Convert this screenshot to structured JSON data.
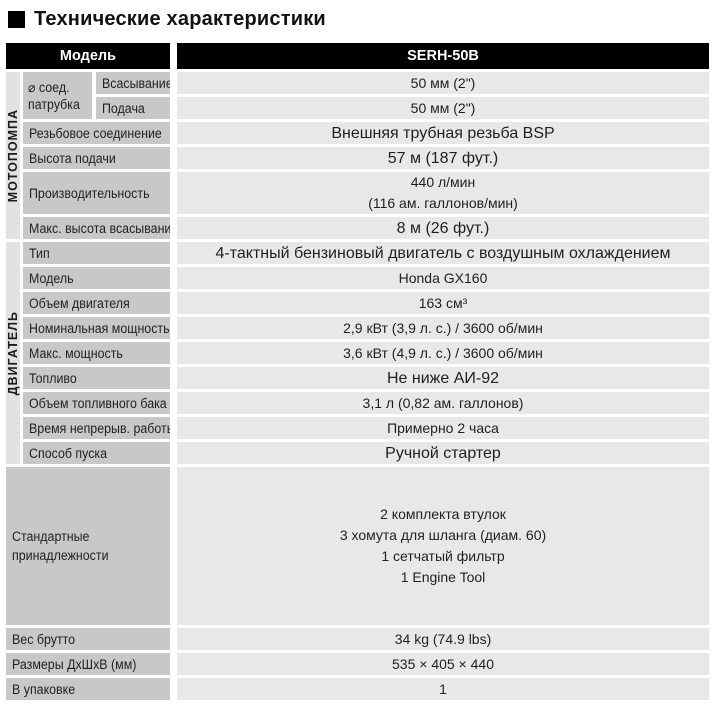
{
  "title": "Технические характеристики",
  "colors": {
    "header_bg": "#000000",
    "label_cell": "#c8c8c8",
    "value_cell": "#e8e8e8",
    "section_strip": "#e2e2e2"
  },
  "header": {
    "model_label": "Модель",
    "model_value": "SERH-50B"
  },
  "sections": {
    "pump": {
      "name": "МОТОПОМПА"
    },
    "engine": {
      "name": "ДВИГАТЕЛЬ"
    }
  },
  "rows": {
    "port": {
      "label_line1": "⌀ соед.",
      "label_line2": "патрубка"
    },
    "suction": {
      "label": "Всасывание",
      "value": "50 мм (2\")"
    },
    "discharge": {
      "label": "Подача",
      "value": "50 мм (2\")"
    },
    "thread": {
      "label": "Резьбовое соединение",
      "value": "Внешняя трубная резьба BSP"
    },
    "head": {
      "label": "Высота подачи",
      "value": "57 м (187 фут.)"
    },
    "capacity": {
      "label": "Производительность",
      "value_line1": "440 л/мин",
      "value_line2": "(116 ам. галлонов/мин)"
    },
    "suction_lift": {
      "label": "Макс. высота всасывания",
      "value": "8 м (26 фут.)"
    },
    "type": {
      "label": "Тип",
      "value": "4-тактный бензиновый двигатель с воздушным охлаждением"
    },
    "engine_model": {
      "label": "Модель",
      "value": "Honda GX160"
    },
    "displacement": {
      "label": "Объем двигателя",
      "value": "163 см³"
    },
    "rated_power": {
      "label": "Номинальная мощность",
      "value": "2,9 кВт (3,9 л. с.) / 3600 об/мин"
    },
    "max_power": {
      "label": "Макс. мощность",
      "value": "3,6 кВт (4,9 л. с.) / 3600 об/мин"
    },
    "fuel": {
      "label": "Топливо",
      "value": "Не ниже АИ-92"
    },
    "tank": {
      "label": "Объем топливного бака",
      "value": "3,1 л (0,82 ам. галлонов)"
    },
    "runtime": {
      "label": "Время непрерыв. работы",
      "value": "Примерно 2 часа"
    },
    "start": {
      "label": "Способ пуска",
      "value": "Ручной стартер"
    },
    "accessories": {
      "label_line1": "Стандартные",
      "label_line2": "принадлежности",
      "value_lines": [
        "2 комплекта втулок",
        "3 хомута для шланга (диам. 60)",
        "1 сетчатый фильтр",
        "1 Engine Tool"
      ]
    },
    "weight": {
      "label": "Вес брутто",
      "value": "34 kg (74.9 lbs)"
    },
    "dimensions": {
      "label": "Размеры ДхШхВ (мм)",
      "value": "535 × 405 × 440"
    },
    "packing": {
      "label": "В упаковке",
      "value": "1"
    }
  }
}
